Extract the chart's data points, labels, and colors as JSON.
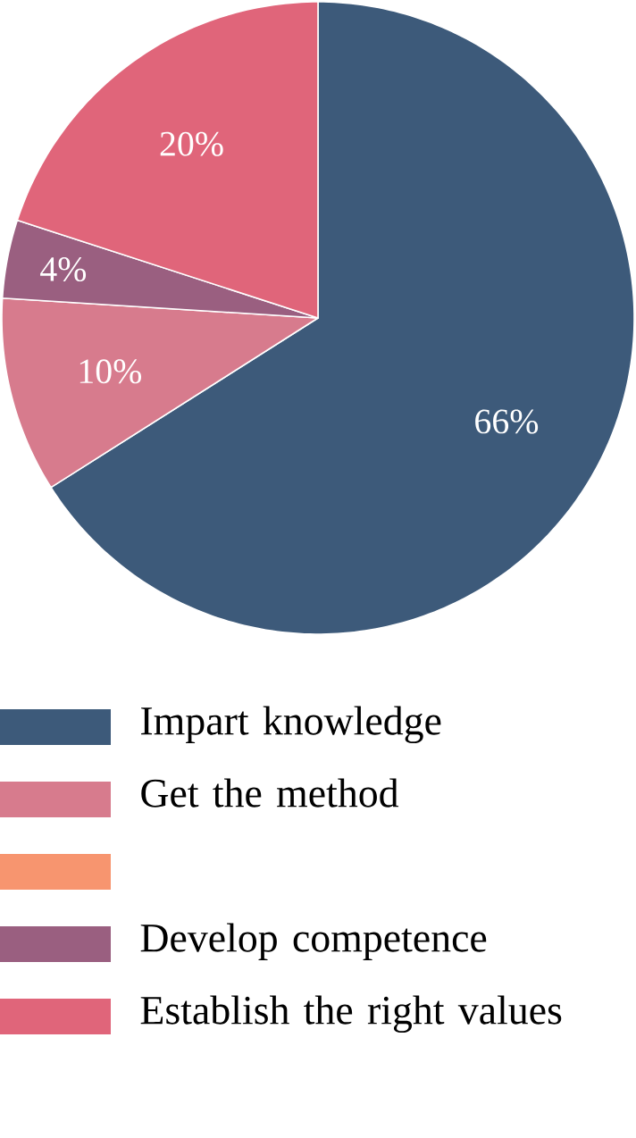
{
  "chart_data": {
    "type": "pie",
    "categories": [
      "Impart knowledge",
      "Get the method",
      null,
      "Develop competence",
      "Establish the right values"
    ],
    "values": [
      66,
      10,
      0,
      4,
      20
    ],
    "colors": [
      "#3d5a7a",
      "#d77b8d",
      "#f7956f",
      "#9a5f80",
      "#e0657a"
    ],
    "value_labels": [
      "66%",
      "10%",
      null,
      "4%",
      "20%"
    ],
    "legend": "bottom"
  }
}
